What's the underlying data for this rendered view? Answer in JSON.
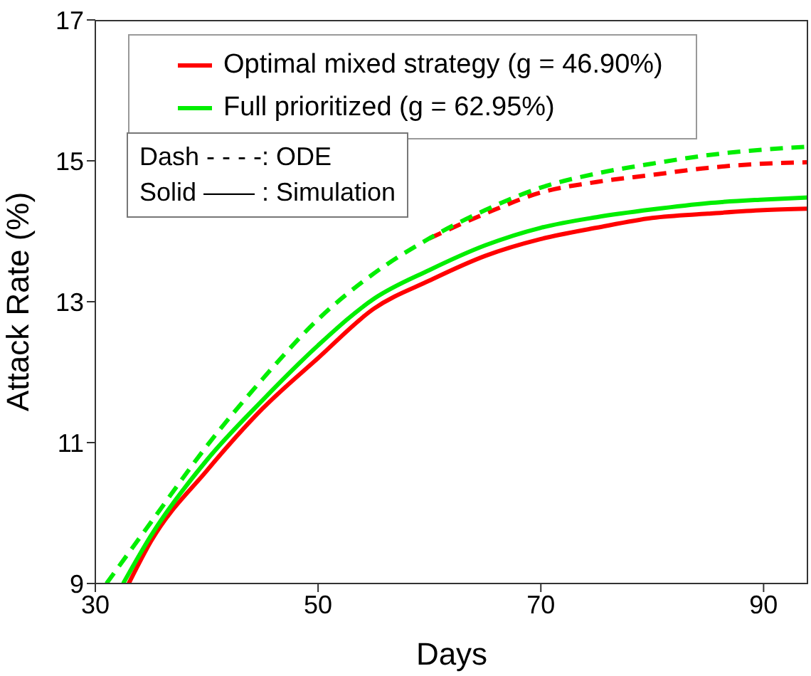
{
  "chart_data": {
    "type": "line",
    "xlabel": "Days",
    "ylabel": "Attack Rate (%)",
    "xlim": [
      30,
      94
    ],
    "xticks": [
      30,
      50,
      70,
      90
    ],
    "ylim": [
      9,
      17
    ],
    "yticks": [
      9,
      11,
      13,
      15,
      17
    ],
    "legend": "top",
    "marker": "none",
    "series": [
      {
        "name": "Optimal mixed strategy (g = 46.90%)",
        "color": "#ff0000",
        "line_style": "solid",
        "x": [
          33,
          35,
          40,
          45,
          50,
          55,
          60,
          65,
          70,
          75,
          80,
          85,
          90,
          94
        ],
        "values": [
          9.0,
          9.6,
          10.6,
          11.48,
          12.2,
          12.9,
          13.3,
          13.65,
          13.89,
          14.05,
          14.19,
          14.25,
          14.3,
          14.32
        ]
      },
      {
        "name": "Full prioritized (g = 62.95%)",
        "color": "#00ee00",
        "line_style": "solid",
        "x": [
          32.5,
          35,
          40,
          45,
          50,
          55,
          60,
          65,
          70,
          75,
          80,
          85,
          90,
          94
        ],
        "values": [
          9.0,
          9.68,
          10.75,
          11.6,
          12.38,
          13.04,
          13.45,
          13.8,
          14.05,
          14.2,
          14.31,
          14.4,
          14.45,
          14.48
        ]
      },
      {
        "color": "#ff0000",
        "line_style": "dashed",
        "x": [
          60,
          65,
          70,
          75,
          80,
          85,
          90,
          94
        ],
        "values": [
          13.9,
          14.25,
          14.55,
          14.7,
          14.8,
          14.9,
          14.96,
          14.98
        ]
      },
      {
        "color": "#00ee00",
        "line_style": "dashed",
        "x": [
          31,
          35,
          40,
          45,
          50,
          55,
          60,
          65,
          70,
          75,
          80,
          85,
          90,
          94
        ],
        "values": [
          9.0,
          9.87,
          10.95,
          11.9,
          12.75,
          13.4,
          13.9,
          14.3,
          14.62,
          14.82,
          14.96,
          15.08,
          15.16,
          15.2
        ]
      }
    ],
    "annotations": [
      "Dash - - - -: ODE",
      "Solid —— : Simulation"
    ]
  }
}
